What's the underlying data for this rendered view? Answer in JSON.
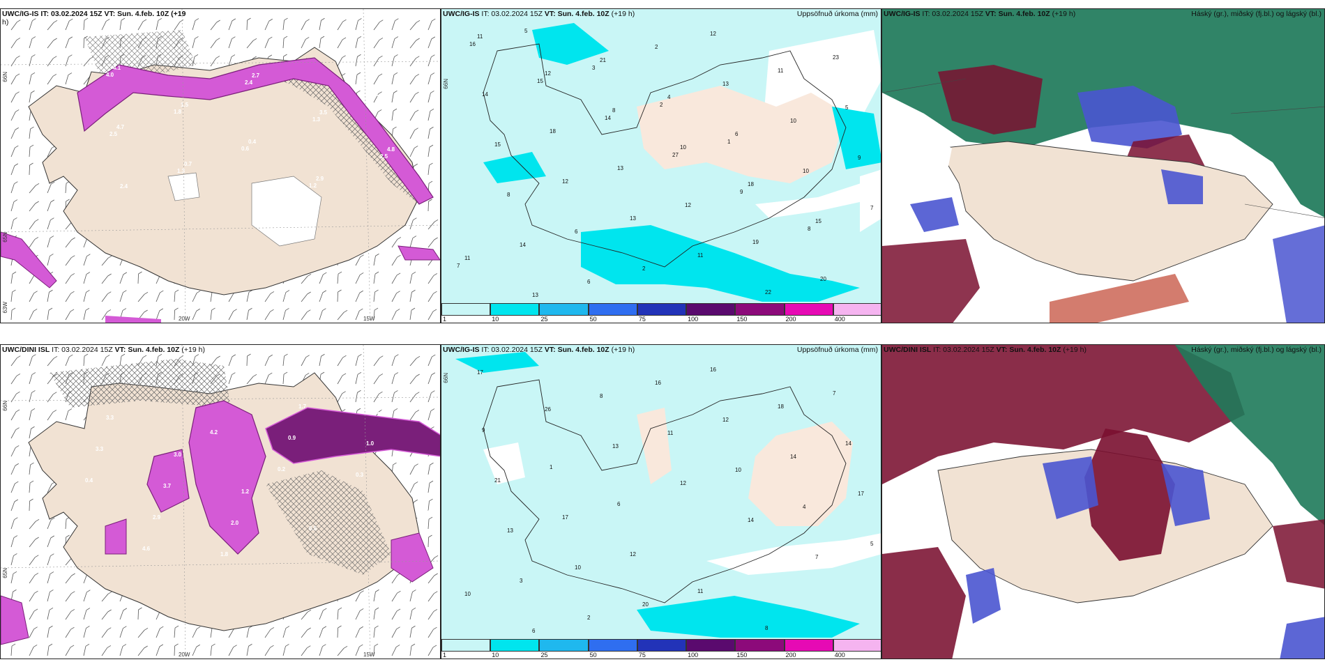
{
  "panels": {
    "top_left": {
      "title": "UWC/IG-IS IT: 03.02.2024 15Z VT: Sun. 4.feb. 10Z (+19",
      "title_cont": "h)",
      "lat_labels": [
        "66N",
        "65N",
        "63W"
      ],
      "lon_labels": [
        "20W",
        "15W"
      ],
      "values": [
        "4.0",
        "1.8",
        "0.6",
        "1.2",
        "2.0",
        "2.5",
        "1.3",
        "2.4",
        "1.3",
        "2.5",
        "4.1",
        "1.5",
        "0.4",
        "2.9",
        "4.1",
        "4.7",
        "0.7",
        "2.7",
        "3.5",
        "4.8",
        "2.4"
      ]
    },
    "top_mid": {
      "model": "UWC/IG-IS",
      "run": "IT: 03.02.2024 15Z",
      "valid": "VT: Sun. 4.feb. 10Z",
      "lead": "(+19 h)",
      "param": "Uppsöfnuð úrkoma (mm)",
      "side_label": "66N",
      "values": [
        "11",
        "12",
        "8",
        "10",
        "18",
        "15",
        "11",
        "13",
        "21",
        "4",
        "6",
        "10",
        "7",
        "14",
        "6",
        "2",
        "13",
        "10",
        "9",
        "8",
        "6",
        "2",
        "12",
        "11",
        "5",
        "15",
        "12",
        "13",
        "11",
        "22",
        "23",
        "14",
        "18",
        "13",
        "12",
        "19",
        "20",
        "16",
        "15",
        "14",
        "27",
        "9",
        "8",
        "7",
        "5",
        "3",
        "2",
        "1"
      ]
    },
    "top_right": {
      "model": "UWC/IG-IS",
      "run": "IT: 03.02.2024 15Z",
      "valid": "VT: Sun. 4.feb. 10Z",
      "lead": "(+19 h)",
      "param": "Háský (gr.), miðský (fj.bl.) og lágský (bl.)"
    },
    "bot_left": {
      "model": "UWC/DINI ISL",
      "run": "IT: 03.02.2024 15Z",
      "valid": "VT: Sun. 4.feb. 10Z",
      "lead": "(+19 h)",
      "lat_labels": [
        "66N",
        "65N"
      ],
      "lon_labels": [
        "20W",
        "15W"
      ],
      "values": [
        "3.3",
        "3.0",
        "1.2",
        "0.5",
        "1.5",
        "3.3",
        "3.7",
        "2.0",
        "1.7",
        "1.0",
        "0.4",
        "2.9",
        "1.8",
        "0.9",
        "0.3",
        "0.6",
        "4.6",
        "4.2",
        "0.2"
      ]
    },
    "bot_mid": {
      "model": "UWC/IG-IS",
      "run": "IT: 03.02.2024 15Z",
      "valid": "VT: Sun. 4.feb. 10Z",
      "lead": "(+19 h)",
      "param": "Uppsöfnuð úrkoma (mm)",
      "side_label": "66N",
      "values": [
        "17",
        "26",
        "13",
        "12",
        "14",
        "7",
        "10",
        "6",
        "8",
        "11",
        "10",
        "4",
        "5",
        "3",
        "2",
        "16",
        "12",
        "14",
        "17",
        "13",
        "10",
        "20",
        "16",
        "18",
        "14",
        "21",
        "17",
        "12",
        "11",
        "8",
        "7",
        "9",
        "1",
        "6"
      ]
    },
    "bot_right": {
      "model": "UWC/DINI ISL",
      "run": "IT: 03.02.2024 15Z",
      "valid": "VT: Sun. 4.feb. 10Z",
      "lead": "(+19 h)",
      "param": "Háský (gr.), miðský (fj.bl.) og lágský (bl.)"
    }
  },
  "colorbar": {
    "ticks": [
      "1",
      "10",
      "25",
      "50",
      "75",
      "100",
      "150",
      "200",
      "400"
    ],
    "colors": [
      "#c9f6f6",
      "#00e5ee",
      "#1fb8ee",
      "#2f6ef0",
      "#2233b8",
      "#5a0a6e",
      "#8c0a7a",
      "#e60ab4",
      "#f5b4f0"
    ]
  },
  "colors": {
    "land": "#f1e2d3",
    "precip_pink": "#d45ad6",
    "precip_dark": "#7a1f7a",
    "cloud_high": "#1e7a5a",
    "cloud_mid": "#7a1030",
    "cloud_low": "#4a55d0",
    "sea_light": "#c9f6f6"
  }
}
